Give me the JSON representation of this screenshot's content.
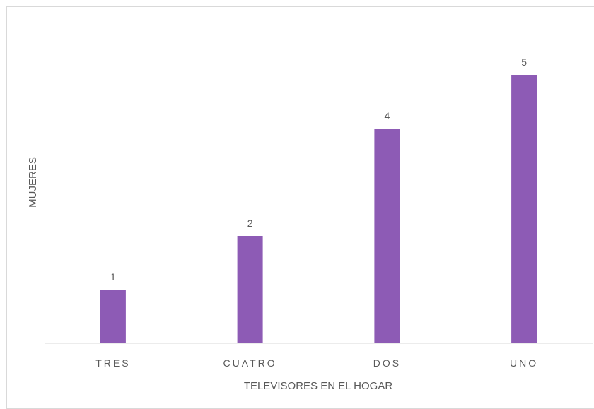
{
  "chart_data": {
    "type": "bar",
    "title": "",
    "categories": [
      "TRES",
      "CUATRO",
      "DOS",
      "UNO"
    ],
    "values": [
      1,
      2,
      4,
      5
    ],
    "xlabel": "TELEVISORES EN EL HOGAR",
    "ylabel": "MUJERES",
    "ylim": [
      0,
      5
    ],
    "bar_color": "#8d5bb5",
    "axis_color": "#d9d9d9",
    "text_color": "#595959",
    "grid": false,
    "legend": "none",
    "data_labels": true
  }
}
